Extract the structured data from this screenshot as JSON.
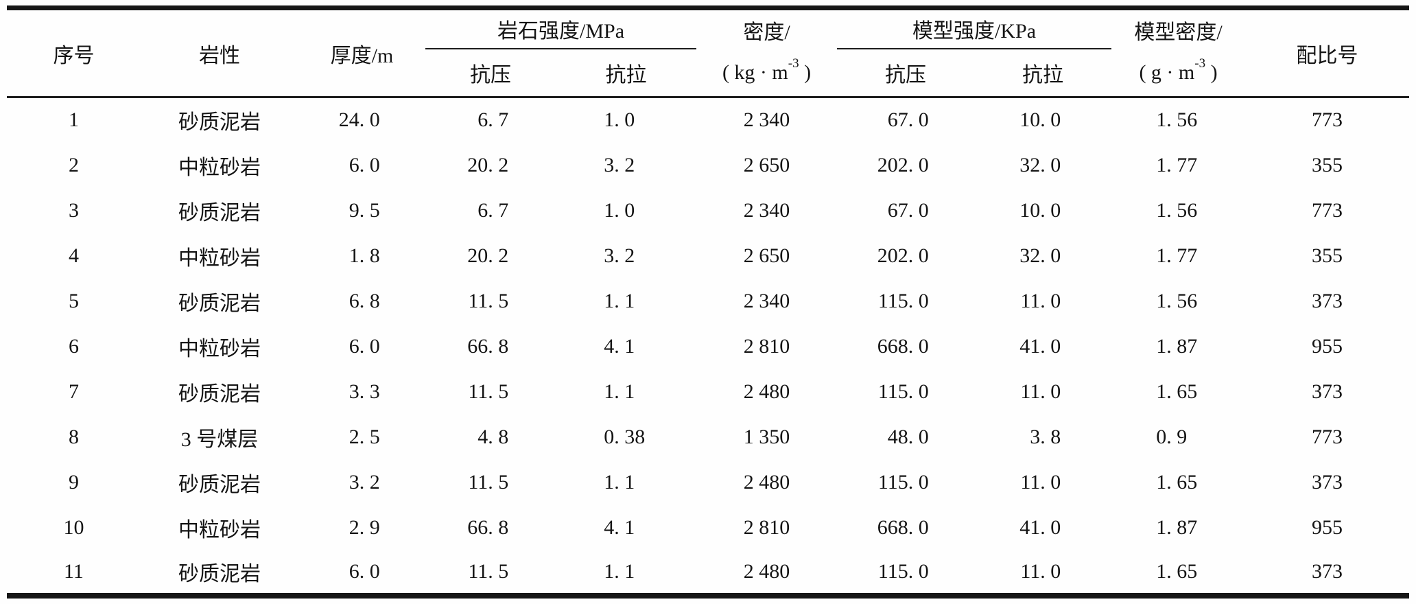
{
  "table": {
    "header": {
      "index": "序号",
      "lithology": "岩性",
      "thickness": "厚度/m",
      "rock_strength": "岩石强度/MPa",
      "model_strength": "模型强度/KPa",
      "compressive": "抗压",
      "tensile": "抗拉",
      "density_title": "密度/",
      "density_unit": {
        "pre": "( kg · m",
        "sup": "-3",
        "post": " )"
      },
      "model_density_title": "模型密度/",
      "model_density_unit": {
        "pre": "( g · m",
        "sup": "-3",
        "post": " )"
      },
      "ratio": "配比号"
    },
    "rows": [
      [
        "1",
        "砂质泥岩",
        "24. 0",
        "6. 7",
        "1. 0",
        "2 340",
        "67. 0",
        "10. 0",
        "1. 56",
        "773"
      ],
      [
        "2",
        "中粒砂岩",
        "6. 0",
        "20. 2",
        "3. 2",
        "2 650",
        "202. 0",
        "32. 0",
        "1. 77",
        "355"
      ],
      [
        "3",
        "砂质泥岩",
        "9. 5",
        "6. 7",
        "1. 0",
        "2 340",
        "67. 0",
        "10. 0",
        "1. 56",
        "773"
      ],
      [
        "4",
        "中粒砂岩",
        "1. 8",
        "20. 2",
        "3. 2",
        "2 650",
        "202. 0",
        "32. 0",
        "1. 77",
        "355"
      ],
      [
        "5",
        "砂质泥岩",
        "6. 8",
        "11. 5",
        "1. 1",
        "2 340",
        "115. 0",
        "11. 0",
        "1. 56",
        "373"
      ],
      [
        "6",
        "中粒砂岩",
        "6. 0",
        "66. 8",
        "4. 1",
        "2 810",
        "668. 0",
        "41. 0",
        "1. 87",
        "955"
      ],
      [
        "7",
        "砂质泥岩",
        "3. 3",
        "11. 5",
        "1. 1",
        "2 480",
        "115. 0",
        "11. 0",
        "1. 65",
        "373"
      ],
      [
        "8",
        "3 号煤层",
        "2. 5",
        "4. 8",
        "0. 38",
        "1 350",
        "48. 0",
        "3. 8",
        "0. 9",
        "773"
      ],
      [
        "9",
        "砂质泥岩",
        "3. 2",
        "11. 5",
        "1. 1",
        "2 480",
        "115. 0",
        "11. 0",
        "1. 65",
        "373"
      ],
      [
        "10",
        "中粒砂岩",
        "2. 9",
        "66. 8",
        "4. 1",
        "2 810",
        "668. 0",
        "41. 0",
        "1. 87",
        "955"
      ],
      [
        "11",
        "砂质泥岩",
        "6. 0",
        "11. 5",
        "1. 1",
        "2 480",
        "115. 0",
        "11. 0",
        "1. 65",
        "373"
      ]
    ]
  },
  "chart_data": {
    "type": "table",
    "title": "",
    "columns": [
      "序号",
      "岩性",
      "厚度/m",
      "岩石强度/MPa 抗压",
      "岩石强度/MPa 抗拉",
      "密度/(kg·m⁻³)",
      "模型强度/KPa 抗压",
      "模型强度/KPa 抗拉",
      "模型密度/(g·m⁻³)",
      "配比号"
    ],
    "rows": [
      [
        1,
        "砂质泥岩",
        24.0,
        6.7,
        1.0,
        2340,
        67.0,
        10.0,
        1.56,
        773
      ],
      [
        2,
        "中粒砂岩",
        6.0,
        20.2,
        3.2,
        2650,
        202.0,
        32.0,
        1.77,
        355
      ],
      [
        3,
        "砂质泥岩",
        9.5,
        6.7,
        1.0,
        2340,
        67.0,
        10.0,
        1.56,
        773
      ],
      [
        4,
        "中粒砂岩",
        1.8,
        20.2,
        3.2,
        2650,
        202.0,
        32.0,
        1.77,
        355
      ],
      [
        5,
        "砂质泥岩",
        6.8,
        11.5,
        1.1,
        2340,
        115.0,
        11.0,
        1.56,
        373
      ],
      [
        6,
        "中粒砂岩",
        6.0,
        66.8,
        4.1,
        2810,
        668.0,
        41.0,
        1.87,
        955
      ],
      [
        7,
        "砂质泥岩",
        3.3,
        11.5,
        1.1,
        2480,
        115.0,
        11.0,
        1.65,
        373
      ],
      [
        8,
        "3 号煤层",
        2.5,
        4.8,
        0.38,
        1350,
        48.0,
        3.8,
        0.9,
        773
      ],
      [
        9,
        "砂质泥岩",
        3.2,
        11.5,
        1.1,
        2480,
        115.0,
        11.0,
        1.65,
        373
      ],
      [
        10,
        "中粒砂岩",
        2.9,
        66.8,
        4.1,
        2810,
        668.0,
        41.0,
        1.87,
        955
      ],
      [
        11,
        "砂质泥岩",
        6.0,
        11.5,
        1.1,
        2480,
        115.0,
        11.0,
        1.65,
        373
      ]
    ]
  }
}
